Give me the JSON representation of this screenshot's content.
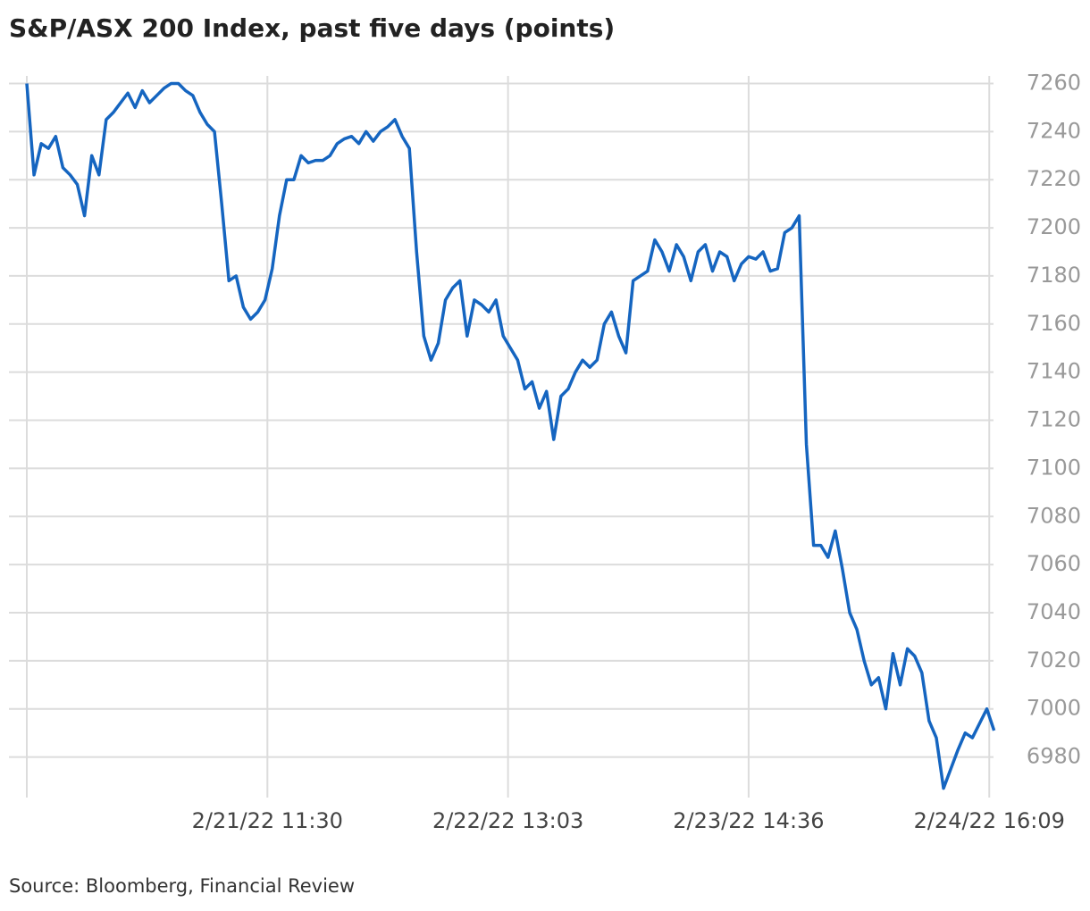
{
  "chart_data": {
    "type": "line",
    "title": "S&P/ASX 200 Index, past five days (points)",
    "source": "Source: Bloomberg, Financial Review",
    "color": "#1565c0",
    "grid": true,
    "x": [
      0,
      3,
      6,
      9,
      12,
      15,
      18,
      21,
      24,
      27,
      30,
      33,
      36,
      39,
      42,
      45,
      48,
      51,
      54,
      57,
      60,
      63,
      66,
      69,
      72,
      75,
      78,
      81,
      84,
      87,
      90,
      93,
      96,
      99,
      102,
      105,
      108,
      111,
      114,
      117,
      120,
      123,
      126,
      129,
      132,
      135,
      138,
      141,
      144,
      147,
      150,
      153,
      156,
      159,
      162,
      165,
      168,
      171,
      174,
      177,
      180,
      183,
      186,
      189,
      192,
      195,
      198,
      201,
      204,
      207,
      210,
      213,
      216,
      219,
      222,
      225,
      228,
      231,
      234,
      237,
      240,
      243,
      246,
      249,
      252,
      255,
      258,
      261,
      264,
      267,
      270,
      273,
      276,
      279,
      282,
      285,
      288,
      291,
      294,
      297,
      300,
      303,
      306,
      309,
      312,
      315,
      318,
      321,
      324,
      327,
      330,
      333,
      336,
      339,
      342,
      345,
      348,
      351,
      354,
      357,
      360,
      363,
      366,
      369,
      372,
      375,
      378,
      381,
      384,
      387,
      390,
      393,
      396,
      399,
      402
    ],
    "values": [
      7260,
      7222,
      7235,
      7233,
      7238,
      7225,
      7222,
      7218,
      7205,
      7230,
      7222,
      7245,
      7248,
      7252,
      7256,
      7250,
      7257,
      7252,
      7255,
      7258,
      7260,
      7260,
      7257,
      7255,
      7248,
      7243,
      7240,
      7210,
      7178,
      7180,
      7167,
      7162,
      7165,
      7170,
      7183,
      7205,
      7220,
      7220,
      7230,
      7227,
      7228,
      7228,
      7230,
      7235,
      7237,
      7238,
      7235,
      7240,
      7236,
      7240,
      7242,
      7245,
      7238,
      7233,
      7190,
      7155,
      7145,
      7152,
      7170,
      7175,
      7178,
      7155,
      7170,
      7168,
      7165,
      7170,
      7155,
      7150,
      7145,
      7133,
      7136,
      7125,
      7132,
      7112,
      7130,
      7133,
      7140,
      7145,
      7142,
      7145,
      7160,
      7165,
      7155,
      7148,
      7178,
      7180,
      7182,
      7195,
      7190,
      7182,
      7193,
      7188,
      7178,
      7190,
      7193,
      7182,
      7190,
      7188,
      7178,
      7185,
      7188,
      7187,
      7190,
      7182,
      7183,
      7198,
      7200,
      7205,
      7110,
      7068,
      7068,
      7063,
      7074,
      7058,
      7040,
      7033,
      7020,
      7010,
      7013,
      7000,
      7023,
      7010,
      7025,
      7022,
      7015,
      6995,
      6988,
      6967,
      6975,
      6983,
      6990,
      6988,
      6994,
      7000,
      6991
    ],
    "xlim": [
      0,
      404
    ],
    "xticks": [
      {
        "value": 100,
        "label": "2/21/22 11:30"
      },
      {
        "value": 200,
        "label": "2/22/22 13:03"
      },
      {
        "value": 300,
        "label": "2/23/22 14:36"
      },
      {
        "value": 400,
        "label": "2/24/22 16:09"
      }
    ],
    "ylim": [
      6965,
      7265
    ],
    "yticks": [
      6980,
      7000,
      7020,
      7040,
      7060,
      7080,
      7100,
      7120,
      7140,
      7160,
      7180,
      7200,
      7220,
      7240,
      7260
    ]
  }
}
